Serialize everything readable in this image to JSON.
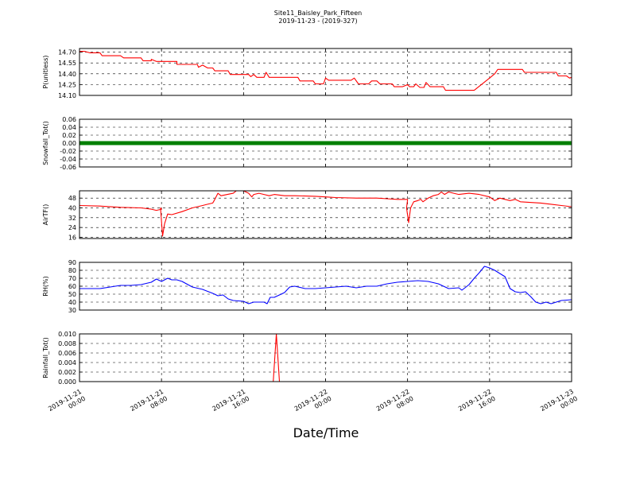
{
  "chart_data": {
    "type": "line",
    "title": "Site11_Baisley_Park_Fifteen",
    "subtitle": "2019-11-23 - (2019-327)",
    "xlabel": "Date/Time",
    "x_ticks": [
      {
        "t": 0,
        "line1": "2019-11-21",
        "line2": "00:00"
      },
      {
        "t": 8,
        "line1": "2019-11-21",
        "line2": "08:00"
      },
      {
        "t": 16,
        "line1": "2019-11-21",
        "line2": "16:00"
      },
      {
        "t": 24,
        "line1": "2019-11-22",
        "line2": "00:00"
      },
      {
        "t": 32,
        "line1": "2019-11-22",
        "line2": "08:00"
      },
      {
        "t": 40,
        "line1": "2019-11-22",
        "line2": "16:00"
      },
      {
        "t": 48,
        "line1": "2019-11-23",
        "line2": "00:00"
      }
    ],
    "x_range_hours": [
      0,
      48
    ],
    "grid": true,
    "panels": [
      {
        "ylabel": "P(unitless)",
        "color": "#ff0000",
        "ylim": [
          14.1,
          14.75
        ],
        "yticks": [
          "14.10",
          "14.25",
          "14.40",
          "14.55",
          "14.70"
        ],
        "ytick_values": [
          14.1,
          14.25,
          14.4,
          14.55,
          14.7
        ],
        "series": [
          [
            0,
            14.71
          ],
          [
            0.5,
            14.71
          ],
          [
            1,
            14.69
          ],
          [
            2,
            14.69
          ],
          [
            2.2,
            14.65
          ],
          [
            4,
            14.65
          ],
          [
            4.3,
            14.62
          ],
          [
            6,
            14.62
          ],
          [
            6.2,
            14.58
          ],
          [
            7,
            14.58
          ],
          [
            7,
            14.6
          ],
          [
            7.5,
            14.57
          ],
          [
            8,
            14.57
          ],
          [
            9.5,
            14.57
          ],
          [
            9.5,
            14.53
          ],
          [
            11.5,
            14.53
          ],
          [
            11.6,
            14.49
          ],
          [
            12,
            14.52
          ],
          [
            12.5,
            14.48
          ],
          [
            13,
            14.48
          ],
          [
            13.2,
            14.44
          ],
          [
            14.5,
            14.44
          ],
          [
            14.7,
            14.39
          ],
          [
            16.5,
            14.39
          ],
          [
            16.7,
            14.36
          ],
          [
            17,
            14.39
          ],
          [
            17.3,
            14.35
          ],
          [
            18,
            14.35
          ],
          [
            18.2,
            14.42
          ],
          [
            18.5,
            14.35
          ],
          [
            21.3,
            14.35
          ],
          [
            21.5,
            14.3
          ],
          [
            22.8,
            14.3
          ],
          [
            23,
            14.26
          ],
          [
            23.8,
            14.26
          ],
          [
            24,
            14.34
          ],
          [
            24.3,
            14.31
          ],
          [
            26.5,
            14.31
          ],
          [
            26.8,
            14.34
          ],
          [
            27.2,
            14.26
          ],
          [
            28.2,
            14.26
          ],
          [
            28.5,
            14.3
          ],
          [
            29,
            14.3
          ],
          [
            29.3,
            14.26
          ],
          [
            30.5,
            14.26
          ],
          [
            30.7,
            14.22
          ],
          [
            31.5,
            14.22
          ],
          [
            32,
            14.25
          ],
          [
            32.2,
            14.22
          ],
          [
            32.6,
            14.22
          ],
          [
            32.8,
            14.26
          ],
          [
            33.2,
            14.21
          ],
          [
            33.6,
            14.21
          ],
          [
            33.8,
            14.28
          ],
          [
            34.2,
            14.22
          ],
          [
            35.5,
            14.22
          ],
          [
            35.7,
            14.17
          ],
          [
            38.5,
            14.17
          ],
          [
            40,
            14.34
          ],
          [
            40.5,
            14.4
          ],
          [
            40.8,
            14.46
          ],
          [
            43.2,
            14.46
          ],
          [
            43.4,
            14.42
          ],
          [
            46.5,
            14.42
          ],
          [
            46.7,
            14.37
          ],
          [
            47.5,
            14.37
          ],
          [
            47.8,
            14.34
          ],
          [
            48,
            14.35
          ]
        ]
      },
      {
        "ylabel": "Snowfall_Tot()",
        "color": "#008000",
        "ylim": [
          -0.06,
          0.06
        ],
        "yticks": [
          "-0.06",
          "-0.04",
          "-0.02",
          "0.00",
          "0.02",
          "0.04",
          "0.06"
        ],
        "ytick_values": [
          -0.06,
          -0.04,
          -0.02,
          0,
          0.02,
          0.04,
          0.06
        ],
        "markers": true,
        "series": [
          [
            0,
            0
          ],
          [
            48,
            0
          ]
        ]
      },
      {
        "ylabel": "AirTF()",
        "color": "#ff0000",
        "ylim": [
          15,
          54
        ],
        "yticks": [
          "16",
          "24",
          "32",
          "40",
          "48"
        ],
        "ytick_values": [
          16,
          24,
          32,
          40,
          48
        ],
        "series": [
          [
            0,
            42
          ],
          [
            2,
            41.5
          ],
          [
            4,
            40.5
          ],
          [
            6,
            40
          ],
          [
            7,
            39
          ],
          [
            7.5,
            38
          ],
          [
            8,
            39
          ],
          [
            7.9,
            40
          ],
          [
            8.1,
            17
          ],
          [
            8.3,
            27
          ],
          [
            8.6,
            35
          ],
          [
            9,
            34.5
          ],
          [
            10,
            37
          ],
          [
            11,
            40
          ],
          [
            12,
            42
          ],
          [
            12.5,
            43
          ],
          [
            13,
            44
          ],
          [
            13.2,
            47
          ],
          [
            13.5,
            52
          ],
          [
            13.8,
            50
          ],
          [
            15,
            52
          ],
          [
            15.3,
            54
          ],
          [
            16,
            54
          ],
          [
            16.5,
            52
          ],
          [
            16.8,
            49
          ],
          [
            17,
            51
          ],
          [
            17.5,
            52
          ],
          [
            18,
            51
          ],
          [
            18.5,
            50
          ],
          [
            19,
            51
          ],
          [
            20,
            50
          ],
          [
            21,
            50
          ],
          [
            23,
            49.5
          ],
          [
            24,
            49
          ],
          [
            25,
            48.5
          ],
          [
            27,
            48
          ],
          [
            28,
            48
          ],
          [
            29,
            48
          ],
          [
            30,
            47.5
          ],
          [
            31,
            47
          ],
          [
            32,
            47
          ],
          [
            31.9,
            40
          ],
          [
            32.1,
            28
          ],
          [
            32.3,
            40
          ],
          [
            32.6,
            45
          ],
          [
            33,
            46
          ],
          [
            33.3,
            47
          ],
          [
            33.5,
            45
          ],
          [
            34,
            48
          ],
          [
            34.5,
            50
          ],
          [
            35,
            51
          ],
          [
            35.3,
            53
          ],
          [
            35.6,
            51
          ],
          [
            36,
            53
          ],
          [
            36.5,
            52
          ],
          [
            37,
            51
          ],
          [
            38,
            52
          ],
          [
            39,
            51
          ],
          [
            40,
            49
          ],
          [
            40.5,
            46
          ],
          [
            41,
            48
          ],
          [
            41.5,
            47
          ],
          [
            42,
            46
          ],
          [
            42.5,
            47
          ],
          [
            43,
            45
          ],
          [
            45,
            44
          ],
          [
            46,
            43
          ],
          [
            47,
            42
          ],
          [
            48,
            41
          ]
        ]
      },
      {
        "ylabel": "RH(%)",
        "color": "#0000ff",
        "ylim": [
          30,
          90
        ],
        "yticks": [
          "30",
          "40",
          "50",
          "60",
          "70",
          "80",
          "90"
        ],
        "ytick_values": [
          30,
          40,
          50,
          60,
          70,
          80,
          90
        ],
        "series": [
          [
            0,
            57
          ],
          [
            1,
            57
          ],
          [
            2,
            57
          ],
          [
            3,
            59
          ],
          [
            4,
            61
          ],
          [
            5,
            61
          ],
          [
            6,
            62
          ],
          [
            7,
            65
          ],
          [
            7.5,
            69
          ],
          [
            8,
            66
          ],
          [
            8.3,
            68
          ],
          [
            8.6,
            70
          ],
          [
            9,
            68
          ],
          [
            9.5,
            68
          ],
          [
            10,
            66
          ],
          [
            11,
            59
          ],
          [
            12,
            56
          ],
          [
            13,
            51
          ],
          [
            13.5,
            48
          ],
          [
            14,
            49
          ],
          [
            14.5,
            44
          ],
          [
            15,
            42
          ],
          [
            16,
            41
          ],
          [
            16.5,
            38
          ],
          [
            17,
            40
          ],
          [
            18,
            40
          ],
          [
            18.3,
            38
          ],
          [
            18.6,
            46
          ],
          [
            19,
            46
          ],
          [
            19.5,
            49
          ],
          [
            20,
            52
          ],
          [
            20.5,
            59
          ],
          [
            21,
            60
          ],
          [
            22,
            57
          ],
          [
            23,
            57
          ],
          [
            24,
            58
          ],
          [
            25,
            59
          ],
          [
            26,
            60
          ],
          [
            27,
            58
          ],
          [
            28,
            60
          ],
          [
            29,
            60
          ],
          [
            30,
            63
          ],
          [
            31,
            65
          ],
          [
            32,
            66
          ],
          [
            33,
            67
          ],
          [
            34,
            66
          ],
          [
            35,
            63
          ],
          [
            35.5,
            60
          ],
          [
            36,
            57
          ],
          [
            37,
            58
          ],
          [
            37.3,
            55
          ],
          [
            37.6,
            58
          ],
          [
            38,
            62
          ],
          [
            38.5,
            70
          ],
          [
            39,
            77
          ],
          [
            39.5,
            85
          ],
          [
            40,
            83
          ],
          [
            40.5,
            80
          ],
          [
            41,
            76
          ],
          [
            41.5,
            72
          ],
          [
            42,
            57
          ],
          [
            42.5,
            53
          ],
          [
            43,
            52
          ],
          [
            43.5,
            53
          ],
          [
            44,
            47
          ],
          [
            44.5,
            40
          ],
          [
            45,
            38
          ],
          [
            45.5,
            40
          ],
          [
            46,
            38
          ],
          [
            46.5,
            40
          ],
          [
            47,
            42
          ],
          [
            48,
            43
          ]
        ]
      },
      {
        "ylabel": "Rainfall_Tot()",
        "color": "#ff0000",
        "ylim": [
          0,
          0.01
        ],
        "yticks": [
          "0.000",
          "0.002",
          "0.004",
          "0.006",
          "0.008",
          "0.010"
        ],
        "ytick_values": [
          0,
          0.002,
          0.004,
          0.006,
          0.008,
          0.01
        ],
        "series": [
          [
            0,
            0
          ],
          [
            18.9,
            0
          ],
          [
            19.2,
            0.01
          ],
          [
            19.5,
            0
          ],
          [
            48,
            0
          ]
        ]
      }
    ]
  }
}
